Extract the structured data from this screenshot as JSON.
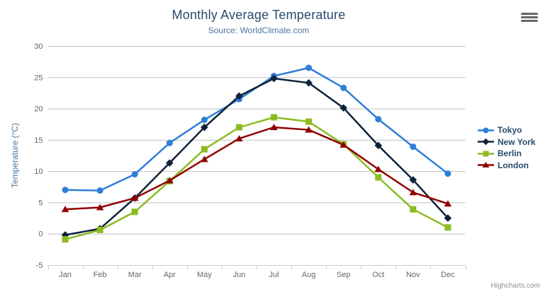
{
  "chart": {
    "title": "Monthly Average Temperature",
    "subtitle": "Source: WorldClimate.com",
    "credits": "Highcharts.com",
    "export_menu_icon": "hamburger-icon"
  },
  "chart_data": {
    "type": "line",
    "title": "Monthly Average Temperature",
    "subtitle": "Source: WorldClimate.com",
    "xlabel": "",
    "ylabel": "Temperature (°C)",
    "ylim": [
      -5,
      30
    ],
    "ytick_interval": 5,
    "grid": true,
    "legend_position": "right",
    "categories": [
      "Jan",
      "Feb",
      "Mar",
      "Apr",
      "May",
      "Jun",
      "Jul",
      "Aug",
      "Sep",
      "Oct",
      "Nov",
      "Dec"
    ],
    "series": [
      {
        "name": "Tokyo",
        "color": "#2f7ed8",
        "marker": "circle",
        "values": [
          7.0,
          6.9,
          9.5,
          14.5,
          18.2,
          21.5,
          25.2,
          26.5,
          23.3,
          18.3,
          13.9,
          9.6
        ]
      },
      {
        "name": "New York",
        "color": "#0d233a",
        "marker": "diamond",
        "values": [
          -0.2,
          0.8,
          5.7,
          11.3,
          17.0,
          22.0,
          24.8,
          24.1,
          20.1,
          14.1,
          8.6,
          2.5
        ]
      },
      {
        "name": "Berlin",
        "color": "#8bbc21",
        "marker": "square",
        "values": [
          -0.9,
          0.6,
          3.5,
          8.4,
          13.5,
          17.0,
          18.6,
          17.9,
          14.3,
          9.0,
          3.9,
          1.0
        ]
      },
      {
        "name": "London",
        "color": "#910000",
        "marker": "triangle",
        "values": [
          3.9,
          4.2,
          5.7,
          8.5,
          11.9,
          15.2,
          17.0,
          16.6,
          14.2,
          10.3,
          6.6,
          4.8
        ]
      }
    ],
    "style": {
      "grid_color": "#c0c0c0",
      "axis_line_color": "#c0d0e0",
      "axis_label_color": "#666666",
      "axis_title_color": "#4d759e"
    }
  }
}
